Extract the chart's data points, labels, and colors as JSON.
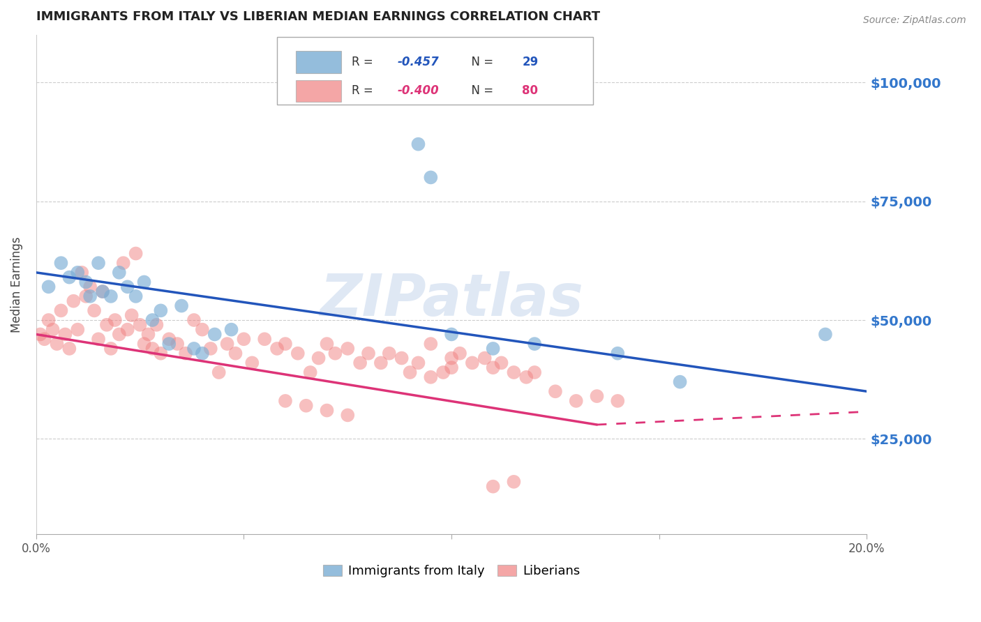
{
  "title": "IMMIGRANTS FROM ITALY VS LIBERIAN MEDIAN EARNINGS CORRELATION CHART",
  "source": "Source: ZipAtlas.com",
  "ylabel": "Median Earnings",
  "legend_label1": "Immigrants from Italy",
  "legend_label2": "Liberians",
  "ytick_labels": [
    "$25,000",
    "$50,000",
    "$75,000",
    "$100,000"
  ],
  "ytick_values": [
    25000,
    50000,
    75000,
    100000
  ],
  "xlim": [
    0.0,
    0.2
  ],
  "ylim": [
    5000,
    110000
  ],
  "color_blue": "#7aadd4",
  "color_pink": "#f08080",
  "color_blue_line": "#2255bb",
  "color_pink_line": "#dd3377",
  "color_ytick": "#3377cc",
  "watermark": "ZIPatlas",
  "blue_scatter_x": [
    0.003,
    0.006,
    0.008,
    0.01,
    0.012,
    0.013,
    0.015,
    0.016,
    0.018,
    0.02,
    0.022,
    0.024,
    0.026,
    0.028,
    0.03,
    0.032,
    0.035,
    0.038,
    0.04,
    0.043,
    0.047,
    0.092,
    0.095,
    0.1,
    0.11,
    0.12,
    0.14,
    0.155,
    0.19
  ],
  "blue_scatter_y": [
    57000,
    62000,
    59000,
    60000,
    58000,
    55000,
    62000,
    56000,
    55000,
    60000,
    57000,
    55000,
    58000,
    50000,
    52000,
    45000,
    53000,
    44000,
    43000,
    47000,
    48000,
    87000,
    80000,
    47000,
    44000,
    45000,
    43000,
    37000,
    47000
  ],
  "pink_scatter_x": [
    0.001,
    0.002,
    0.003,
    0.004,
    0.005,
    0.006,
    0.007,
    0.008,
    0.009,
    0.01,
    0.011,
    0.012,
    0.013,
    0.014,
    0.015,
    0.016,
    0.017,
    0.018,
    0.019,
    0.02,
    0.021,
    0.022,
    0.023,
    0.024,
    0.025,
    0.026,
    0.027,
    0.028,
    0.029,
    0.03,
    0.032,
    0.034,
    0.036,
    0.038,
    0.04,
    0.042,
    0.044,
    0.046,
    0.048,
    0.05,
    0.052,
    0.055,
    0.058,
    0.06,
    0.063,
    0.066,
    0.068,
    0.07,
    0.072,
    0.075,
    0.078,
    0.08,
    0.083,
    0.085,
    0.088,
    0.09,
    0.092,
    0.095,
    0.098,
    0.1,
    0.102,
    0.105,
    0.108,
    0.11,
    0.112,
    0.115,
    0.118,
    0.12,
    0.095,
    0.1,
    0.125,
    0.13,
    0.135,
    0.14,
    0.06,
    0.065,
    0.07,
    0.075,
    0.11,
    0.115
  ],
  "pink_scatter_y": [
    47000,
    46000,
    50000,
    48000,
    45000,
    52000,
    47000,
    44000,
    54000,
    48000,
    60000,
    55000,
    57000,
    52000,
    46000,
    56000,
    49000,
    44000,
    50000,
    47000,
    62000,
    48000,
    51000,
    64000,
    49000,
    45000,
    47000,
    44000,
    49000,
    43000,
    46000,
    45000,
    43000,
    50000,
    48000,
    44000,
    39000,
    45000,
    43000,
    46000,
    41000,
    46000,
    44000,
    45000,
    43000,
    39000,
    42000,
    45000,
    43000,
    44000,
    41000,
    43000,
    41000,
    43000,
    42000,
    39000,
    41000,
    45000,
    39000,
    42000,
    43000,
    41000,
    42000,
    40000,
    41000,
    39000,
    38000,
    39000,
    38000,
    40000,
    35000,
    33000,
    34000,
    33000,
    33000,
    32000,
    31000,
    30000,
    15000,
    16000
  ]
}
